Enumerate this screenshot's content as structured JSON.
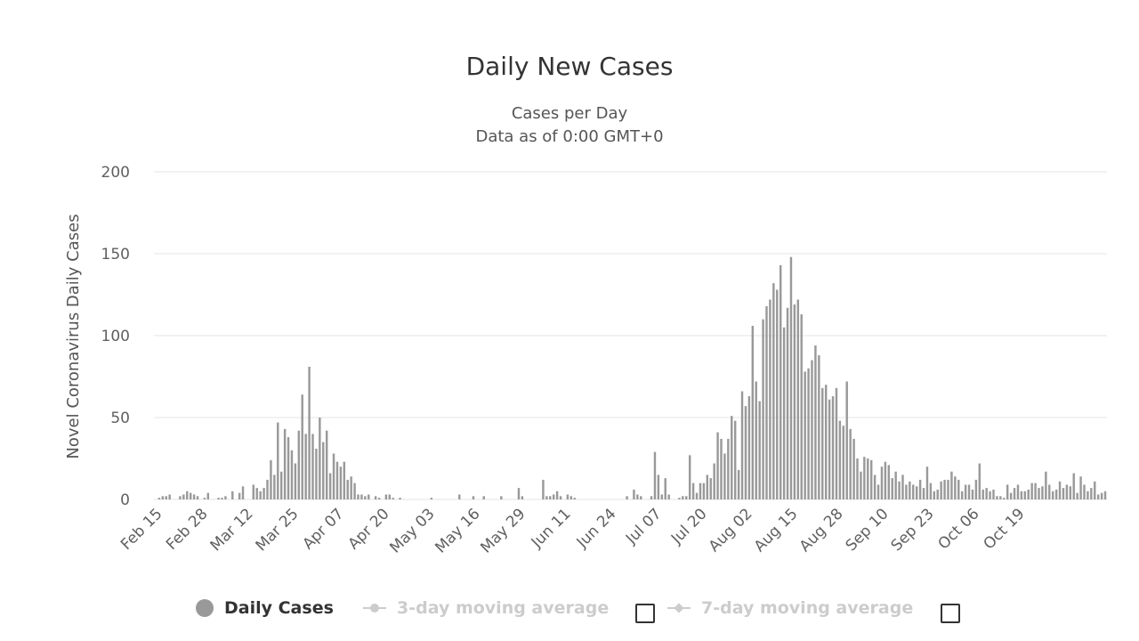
{
  "colors": {
    "bar": "#999999",
    "grid": "#e6e6e6",
    "axis_text": "#606060",
    "hidden_legend": "#cccccc"
  },
  "legend": {
    "daily_cases": "Daily Cases",
    "avg3": "3-day moving average",
    "avg7": "7-day moving average"
  },
  "chart_data": {
    "type": "bar",
    "title": "Daily New Cases",
    "subtitle_lines": [
      "Cases per Day",
      "Data as of 0:00 GMT+0"
    ],
    "xlabel": "",
    "ylabel": "Novel Coronavirus Daily Cases",
    "ylim": [
      0,
      200
    ],
    "yticks": [
      0,
      50,
      100,
      150,
      200
    ],
    "grid": true,
    "legend_position": "bottom",
    "start_date": "Feb 15",
    "xtick_labels": [
      "Feb 15",
      "Feb 28",
      "Mar 12",
      "Mar 25",
      "Apr 07",
      "Apr 20",
      "May 03",
      "May 16",
      "May 29",
      "Jun 11",
      "Jun 24",
      "Jul 07",
      "Jul 20",
      "Aug 02",
      "Aug 15",
      "Aug 28",
      "Sep 10",
      "Sep 23",
      "Oct 06",
      "Oct 19"
    ],
    "xtick_interval_days": 13,
    "series": [
      {
        "name": "Daily Cases",
        "values": [
          0,
          1,
          2,
          2,
          3,
          0,
          0,
          2,
          3,
          5,
          4,
          3,
          2,
          0,
          1,
          4,
          0,
          0,
          1,
          1,
          2,
          0,
          5,
          0,
          4,
          8,
          0,
          0,
          9,
          7,
          5,
          7,
          12,
          24,
          15,
          47,
          17,
          43,
          38,
          30,
          22,
          42,
          64,
          40,
          81,
          40,
          31,
          50,
          35,
          42,
          16,
          28,
          23,
          20,
          23,
          12,
          14,
          10,
          3,
          3,
          2,
          3,
          0,
          2,
          1,
          0,
          3,
          3,
          1,
          0,
          1,
          0,
          0,
          0,
          0,
          0,
          0,
          0,
          0,
          1,
          0,
          0,
          0,
          0,
          0,
          0,
          0,
          3,
          0,
          0,
          0,
          2,
          0,
          0,
          2,
          0,
          0,
          0,
          0,
          2,
          0,
          0,
          0,
          0,
          7,
          2,
          0,
          0,
          0,
          0,
          0,
          12,
          2,
          2,
          3,
          5,
          2,
          0,
          3,
          2,
          1,
          0,
          0,
          0,
          0,
          0,
          0,
          0,
          0,
          0,
          0,
          0,
          0,
          0,
          0,
          2,
          0,
          6,
          3,
          2,
          0,
          0,
          2,
          29,
          15,
          3,
          13,
          3,
          0,
          0,
          1,
          2,
          2,
          27,
          10,
          4,
          10,
          10,
          15,
          13,
          22,
          41,
          37,
          28,
          37,
          51,
          48,
          18,
          66,
          57,
          63,
          106,
          72,
          60,
          110,
          118,
          122,
          132,
          128,
          143,
          105,
          117,
          148,
          119,
          122,
          113,
          78,
          80,
          85,
          94,
          88,
          68,
          70,
          61,
          63,
          68,
          48,
          45,
          72,
          43,
          37,
          25,
          17,
          26,
          25,
          24,
          15,
          9,
          20,
          23,
          21,
          13,
          17,
          11,
          15,
          9,
          11,
          9,
          8,
          12,
          7,
          20,
          10,
          5,
          6,
          11,
          12,
          12,
          17,
          14,
          12,
          5,
          9,
          9,
          6,
          12,
          22,
          6,
          7,
          5,
          6,
          2,
          2,
          1,
          9,
          4,
          7,
          9,
          5,
          5,
          6,
          10,
          10,
          7,
          8,
          17,
          9,
          5,
          6,
          11,
          7,
          9,
          8,
          16,
          4,
          14,
          9,
          5,
          7,
          11,
          3,
          4,
          5
        ]
      }
    ]
  }
}
